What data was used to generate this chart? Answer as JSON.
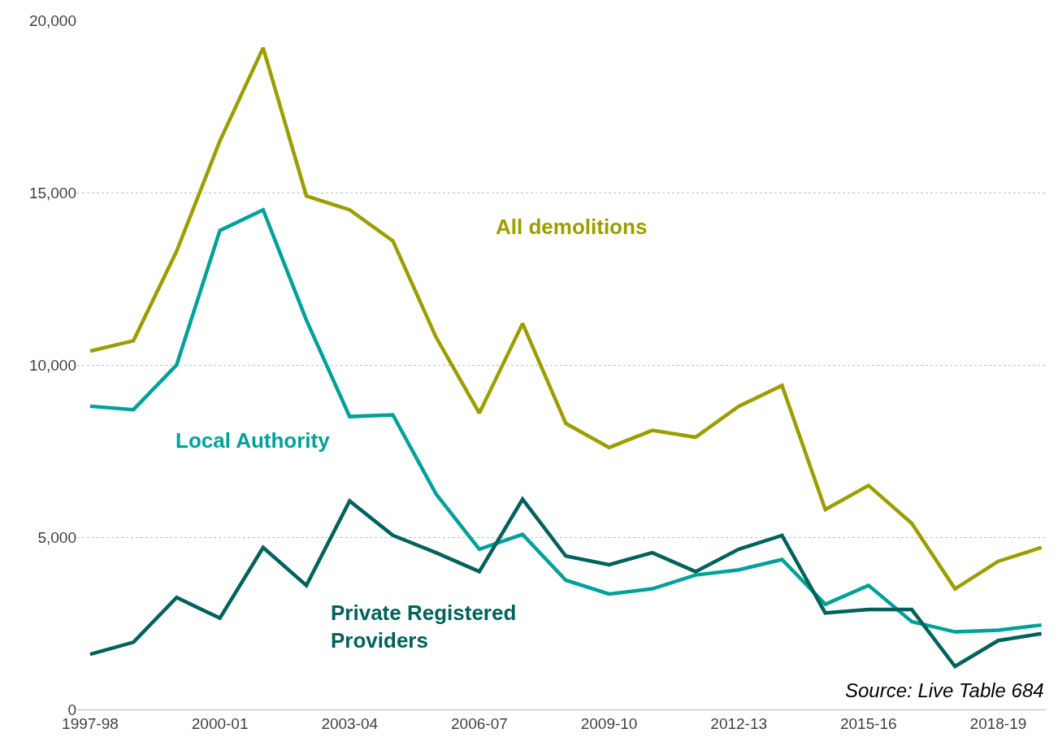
{
  "chart_data": {
    "type": "line",
    "categories": [
      "1997-98",
      null,
      null,
      "2000-01",
      null,
      null,
      "2003-04",
      null,
      null,
      "2006-07",
      null,
      null,
      "2009-10",
      null,
      null,
      "2012-13",
      null,
      null,
      "2015-16",
      null,
      null,
      "2018-19",
      null
    ],
    "series": [
      {
        "name": "All demolitions",
        "color": "#9c9e00",
        "values": [
          10400,
          10700,
          13300,
          16500,
          19200,
          14900,
          14500,
          13600,
          10800,
          8600,
          11200,
          8300,
          7600,
          8100,
          7900,
          8800,
          9400,
          5800,
          6500,
          5400,
          3500,
          4300,
          4700
        ]
      },
      {
        "name": "Local Authority",
        "color": "#00a19a",
        "values": [
          8800,
          8700,
          10000,
          13900,
          14500,
          11300,
          8500,
          8550,
          6250,
          4650,
          5080,
          3750,
          3350,
          3500,
          3900,
          4050,
          4350,
          3050,
          3600,
          2550,
          2250,
          2300,
          2450
        ]
      },
      {
        "name": "Private Registered Providers",
        "color": "#00625a",
        "values": [
          1600,
          1950,
          3250,
          2650,
          4700,
          3600,
          6050,
          5050,
          4550,
          4000,
          6100,
          4450,
          4200,
          4550,
          4000,
          4650,
          5050,
          2800,
          2900,
          2900,
          1250,
          2000,
          2200
        ]
      }
    ],
    "ylim": [
      0,
      20000
    ],
    "yticks": [
      {
        "value": 0,
        "label": "0"
      },
      {
        "value": 5000,
        "label": "5,000"
      },
      {
        "value": 10000,
        "label": "10,000"
      },
      {
        "value": 15000,
        "label": "15,000"
      },
      {
        "value": 20000,
        "label": "20,000"
      }
    ],
    "grid": "y",
    "legend": false,
    "line_style": "solid",
    "marker": "none",
    "annotations": [
      "Source: Live Table 684"
    ]
  }
}
